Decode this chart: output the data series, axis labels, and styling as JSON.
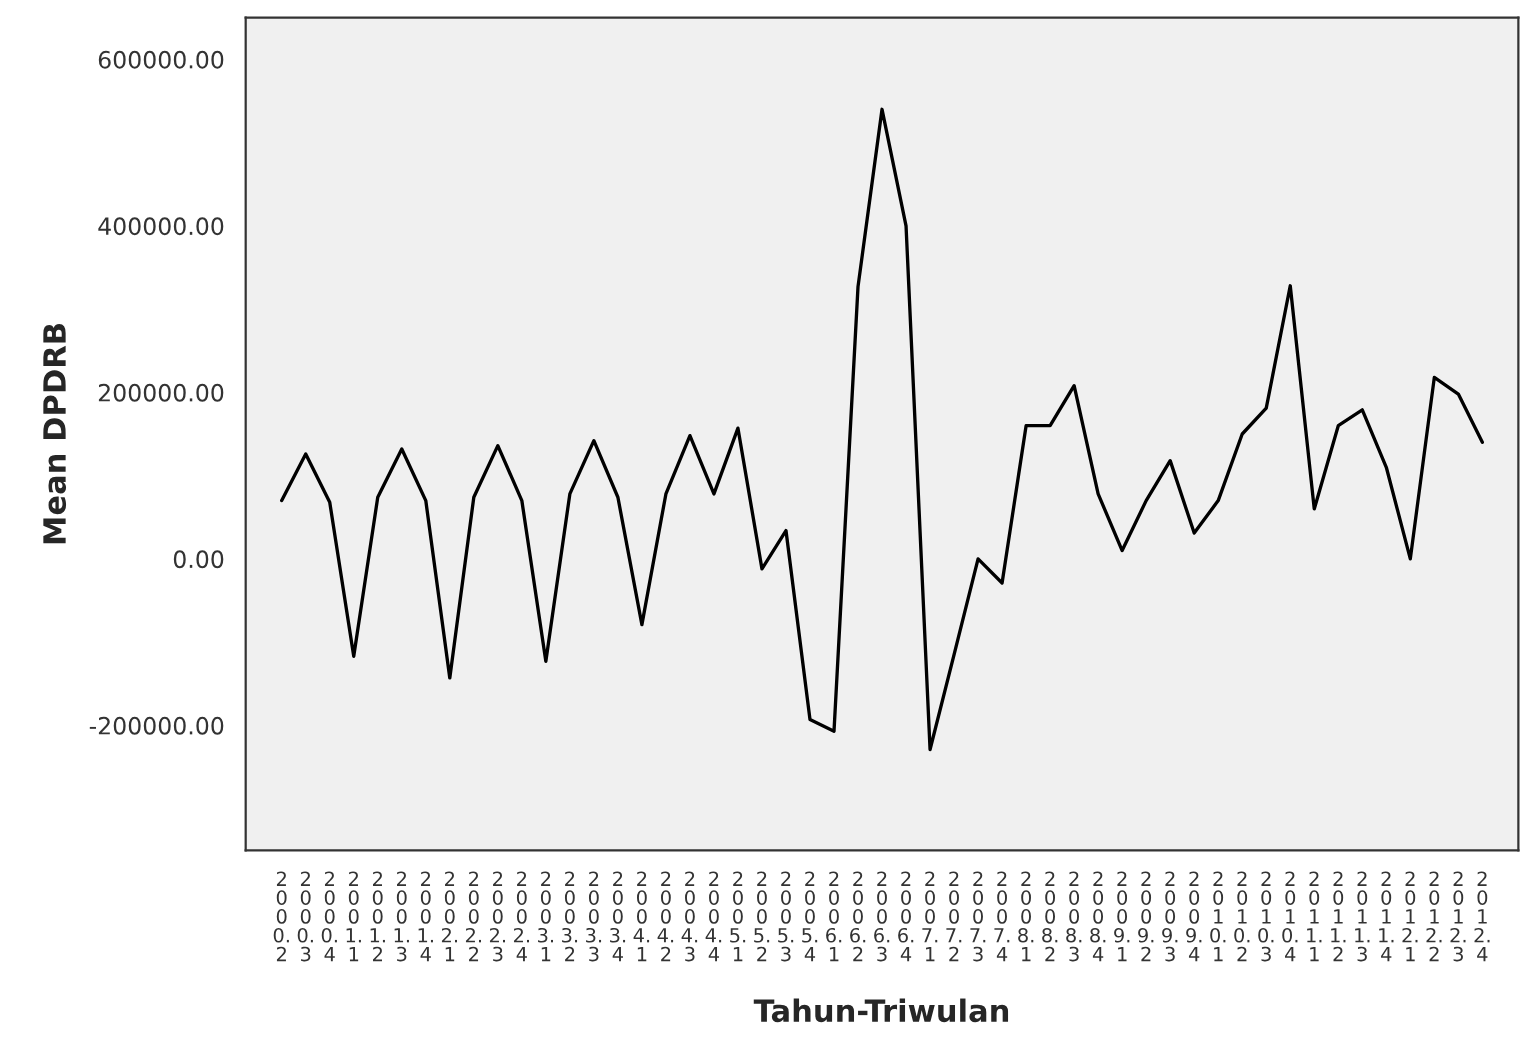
{
  "chart_data": {
    "type": "line",
    "xlabel": "Tahun-Triwulan",
    "ylabel": "Mean DPDRB",
    "categories": [
      "2000.2",
      "2000.3",
      "2000.4",
      "2001.1",
      "2001.2",
      "2001.3",
      "2001.4",
      "2002.1",
      "2002.2",
      "2002.3",
      "2002.4",
      "2003.1",
      "2003.2",
      "2003.3",
      "2003.4",
      "2004.1",
      "2004.2",
      "2004.3",
      "2004.4",
      "2005.1",
      "2005.2",
      "2005.3",
      "2005.4",
      "2006.1",
      "2006.2",
      "2006.3",
      "2006.4",
      "2007.1",
      "2007.2",
      "2007.3",
      "2007.4",
      "2008.1",
      "2008.2",
      "2008.3",
      "2008.4",
      "2009.1",
      "2009.2",
      "2009.3",
      "2009.4",
      "2010.1",
      "2010.2",
      "2010.3",
      "2010.4",
      "2011.1",
      "2011.2",
      "2011.3",
      "2011.4",
      "2012.1",
      "2012.2",
      "2012.3",
      "2012.4"
    ],
    "series": [
      {
        "color": "#000000",
        "values": [
          70000,
          126000,
          68000,
          -117000,
          74000,
          132000,
          70000,
          -143000,
          74000,
          136000,
          70000,
          -123000,
          78000,
          142000,
          74000,
          -79000,
          78000,
          148000,
          78000,
          157000,
          -12000,
          34000,
          -193000,
          -207000,
          327000,
          540000,
          400000,
          -229000,
          -115000,
          0,
          -29000,
          160000,
          160000,
          208000,
          78000,
          10000,
          70000,
          118000,
          31000,
          70000,
          150000,
          181000,
          328000,
          60000,
          160000,
          179000,
          110000,
          0,
          218000,
          198000,
          140000
        ]
      }
    ],
    "ylim": [
      -350000,
      650000
    ],
    "yticks": [
      {
        "value": -200000,
        "label": "-200000.00"
      },
      {
        "value": 0,
        "label": "0.00"
      },
      {
        "value": 200000,
        "label": "200000.00"
      },
      {
        "value": 400000,
        "label": "400000.00"
      },
      {
        "value": 600000,
        "label": "600000.00"
      }
    ],
    "grid": false,
    "marker": "none",
    "line_style": "solid"
  }
}
